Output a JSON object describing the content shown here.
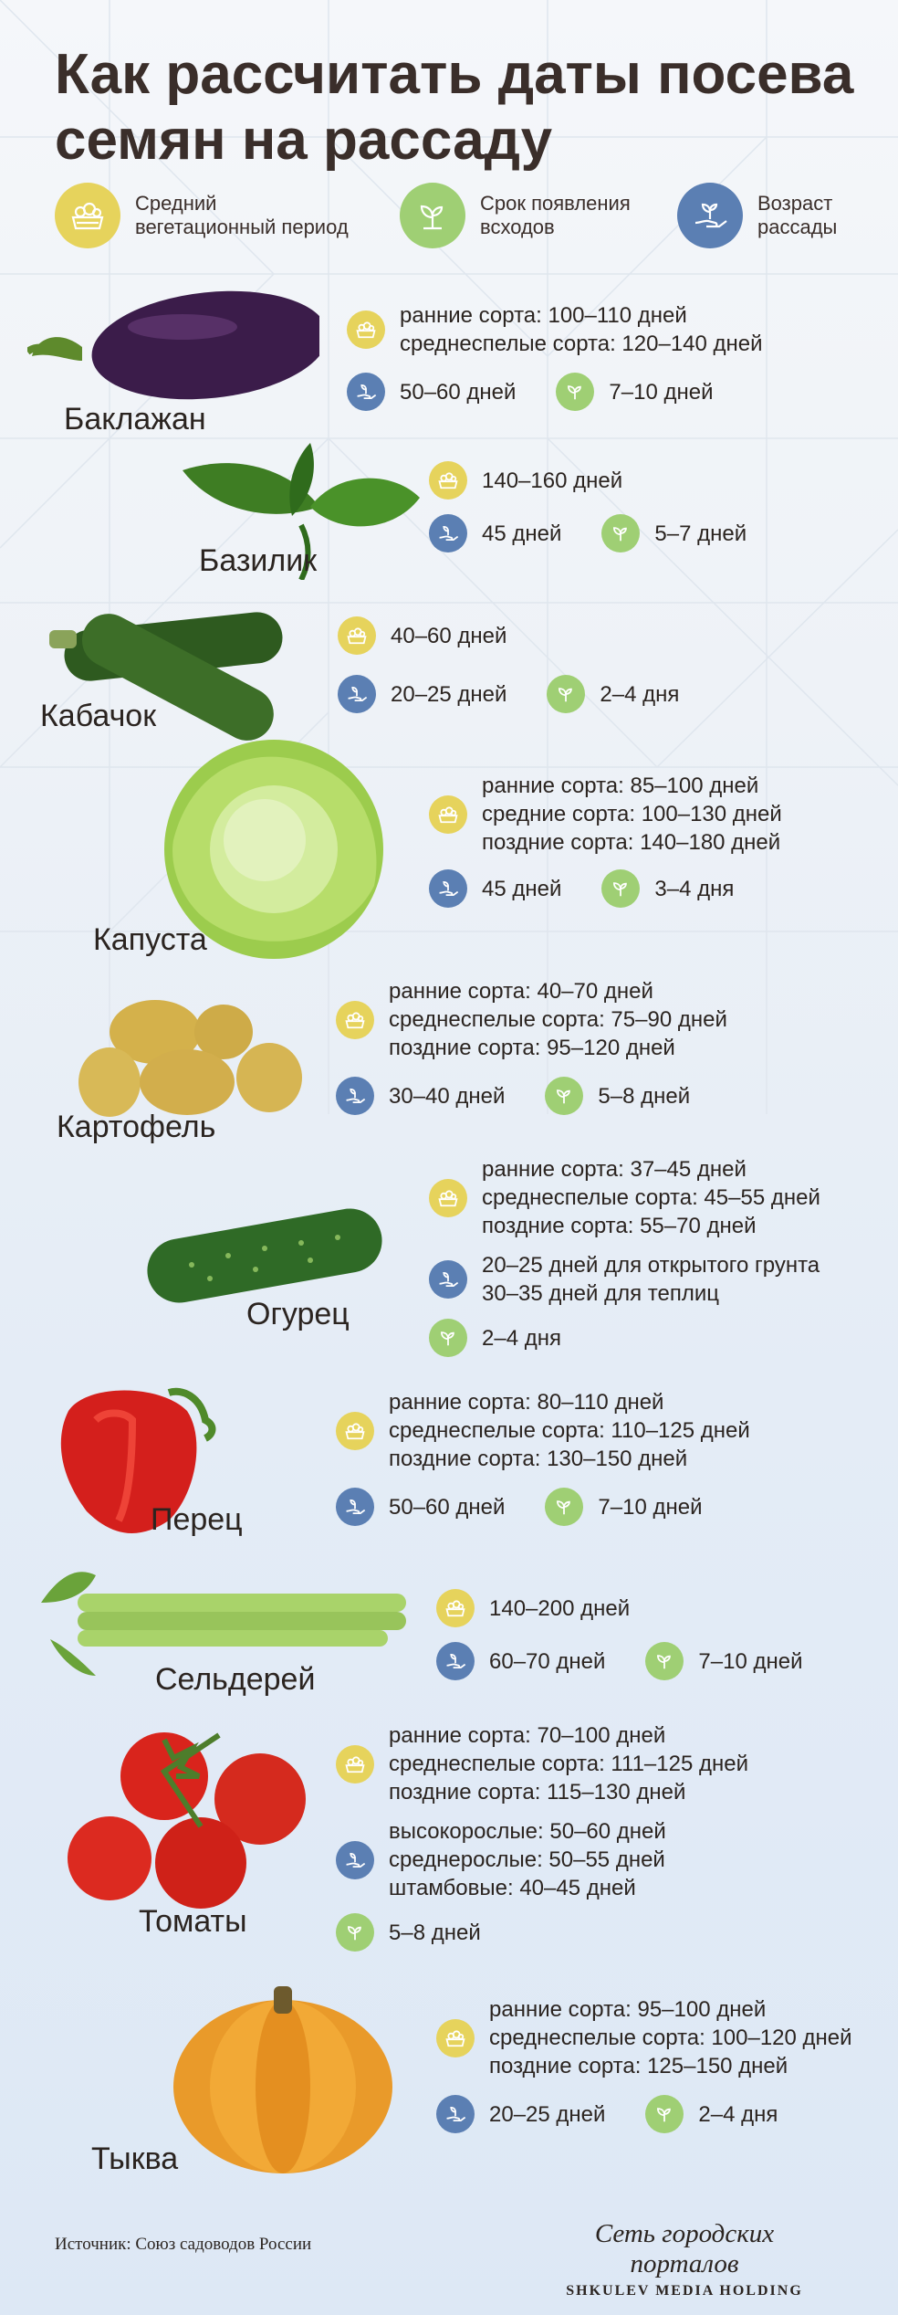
{
  "title": "Как рассчитать даты посева семян на рассаду",
  "legend": {
    "vegetation": "Средний вегетационный период",
    "sprouting": "Срок появления всходов",
    "seedling_age": "Возраст рассады"
  },
  "vegetables": [
    {
      "name": "Баклажан",
      "vegetation": [
        "ранние сорта: 100–110 дней",
        "среднеспелые сорта: 120–140 дней"
      ],
      "seedling_age": [
        "50–60 дней"
      ],
      "sprouting": "7–10 дней"
    },
    {
      "name": "Базилик",
      "vegetation": [
        "140–160 дней"
      ],
      "seedling_age": [
        "45 дней"
      ],
      "sprouting": "5–7 дней"
    },
    {
      "name": "Кабачок",
      "vegetation": [
        "40–60 дней"
      ],
      "seedling_age": [
        "20–25 дней"
      ],
      "sprouting": "2–4 дня"
    },
    {
      "name": "Капуста",
      "vegetation": [
        "ранние сорта: 85–100 дней",
        "средние сорта: 100–130 дней",
        "поздние сорта: 140–180 дней"
      ],
      "seedling_age": [
        "45 дней"
      ],
      "sprouting": "3–4 дня"
    },
    {
      "name": "Картофель",
      "vegetation": [
        "ранние сорта: 40–70 дней",
        "среднеспелые сорта: 75–90 дней",
        "поздние сорта: 95–120 дней"
      ],
      "seedling_age": [
        "30–40 дней"
      ],
      "sprouting": "5–8 дней"
    },
    {
      "name": "Огурец",
      "vegetation": [
        "ранние сорта: 37–45 дней",
        "среднеспелые сорта: 45–55 дней",
        "поздние сорта: 55–70 дней"
      ],
      "seedling_age": [
        "20–25 дней для открытого грунта",
        "30–35 дней для теплиц"
      ],
      "sprouting": "2–4 дня"
    },
    {
      "name": "Перец",
      "vegetation": [
        "ранние сорта: 80–110 дней",
        "среднеспелые сорта: 110–125 дней",
        "поздние сорта: 130–150 дней"
      ],
      "seedling_age": [
        "50–60 дней"
      ],
      "sprouting": "7–10 дней"
    },
    {
      "name": "Сельдерей",
      "vegetation": [
        "140–200 дней"
      ],
      "seedling_age": [
        "60–70 дней"
      ],
      "sprouting": "7–10 дней"
    },
    {
      "name": "Томаты",
      "vegetation": [
        "ранние сорта: 70–100 дней",
        "среднеспелые сорта: 111–125 дней",
        "поздние сорта: 115–130 дней"
      ],
      "seedling_age": [
        "высокорослые: 50–60 дней",
        "среднерослые: 50–55 дней",
        "штамбовые: 40–45 дней"
      ],
      "sprouting": "5–8 дней"
    },
    {
      "name": "Тыква",
      "vegetation": [
        "ранние сорта: 95–100 дней",
        "среднеспелые сорта: 100–120 дней",
        "поздние сорта: 125–150 дней"
      ],
      "seedling_age": [
        "20–25 дней"
      ],
      "sprouting": "2–4 дня"
    }
  ],
  "footer": {
    "source": "Источник: Союз садоводов России",
    "logo_line1": "Сеть городских порталов",
    "logo_line2": "SHKULEV MEDIA HOLDING"
  },
  "colors": {
    "vegetation_icon": "#e6d35c",
    "sprouting_icon": "#9fcf74",
    "seedling_icon": "#5b7fb3"
  }
}
